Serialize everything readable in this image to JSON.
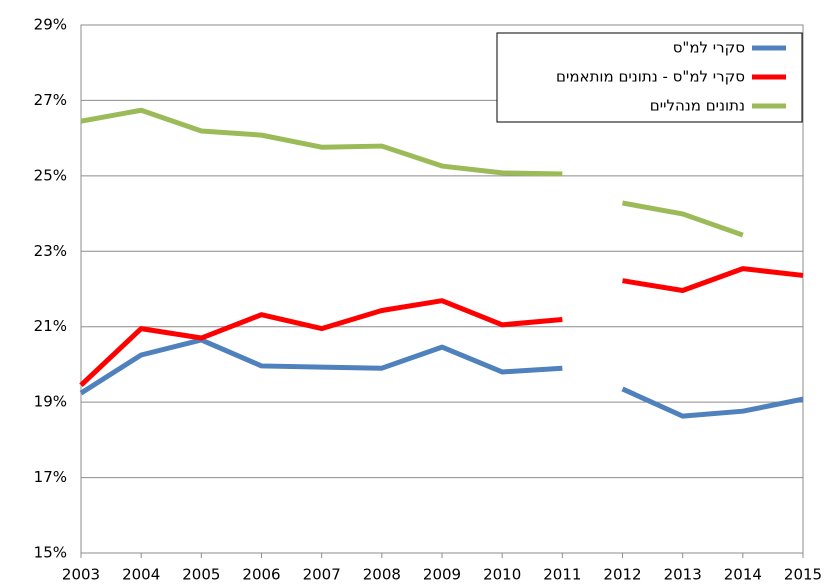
{
  "chart_data": {
    "type": "line",
    "x": [
      2003,
      2004,
      2005,
      2006,
      2007,
      2008,
      2009,
      2010,
      2011,
      2012,
      2013,
      2014,
      2015
    ],
    "xlim": [
      2003,
      2015
    ],
    "break_after": 2011,
    "ylim": [
      15,
      29
    ],
    "yticks": [
      {
        "value": 15,
        "label": "15%"
      },
      {
        "value": 17,
        "label": "17%"
      },
      {
        "value": 19,
        "label": "19%"
      },
      {
        "value": 21,
        "label": "21%"
      },
      {
        "value": 23,
        "label": "23%"
      },
      {
        "value": 25,
        "label": "25%"
      },
      {
        "value": 27,
        "label": "27%"
      },
      {
        "value": 29,
        "label": "29%"
      }
    ],
    "grid": true,
    "legend": "upper right",
    "series": [
      {
        "name": "סקרי למ\"ס",
        "color": "#4f81bd",
        "values": [
          19.24,
          20.25,
          20.65,
          19.96,
          19.93,
          19.9,
          20.46,
          19.8,
          19.9,
          19.35,
          18.63,
          18.76,
          19.08
        ]
      },
      {
        "name": "סקרי למ\"ס - נתונים מותאמים",
        "color": "#ff0000",
        "values": [
          19.45,
          20.95,
          20.7,
          21.32,
          20.95,
          21.43,
          21.69,
          21.05,
          21.19,
          22.22,
          21.96,
          22.54,
          22.36
        ]
      },
      {
        "name": "נתונים מנהליים",
        "color": "#9bbb59",
        "values": [
          26.45,
          26.74,
          26.19,
          26.08,
          25.76,
          25.79,
          25.26,
          25.08,
          25.05,
          24.28,
          23.99,
          23.43,
          null
        ]
      }
    ]
  }
}
